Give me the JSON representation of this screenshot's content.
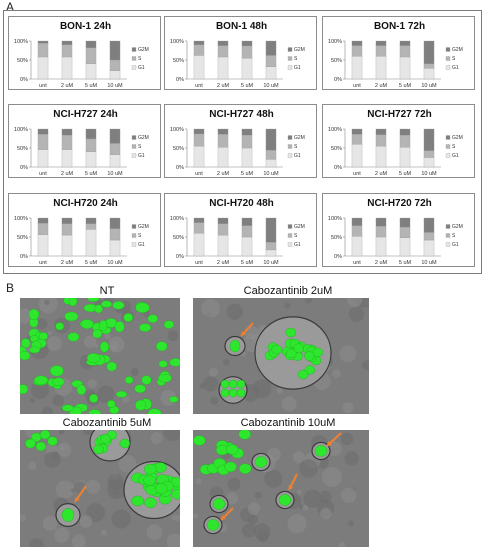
{
  "panel_a_label": "A",
  "panel_b_label": "B",
  "chart_data": [
    {
      "type": "bar",
      "title": "BON-1 24h",
      "categories": [
        "unt",
        "2 uM",
        "5 uM",
        "10 uM"
      ],
      "ylim": [
        0,
        100
      ],
      "yticks": [
        "0%",
        "50%",
        "100%"
      ],
      "series": [
        {
          "name": "G1",
          "values": [
            58,
            58,
            40,
            22
          ]
        },
        {
          "name": "S",
          "values": [
            36,
            32,
            42,
            28
          ]
        },
        {
          "name": "G2M",
          "values": [
            6,
            10,
            18,
            50
          ]
        }
      ],
      "legend": "right"
    },
    {
      "type": "bar",
      "title": "BON-1 48h",
      "categories": [
        "unt",
        "2 uM",
        "5 uM",
        "10 uM"
      ],
      "ylim": [
        0,
        100
      ],
      "yticks": [
        "0%",
        "50%",
        "100%"
      ],
      "series": [
        {
          "name": "G1",
          "values": [
            62,
            58,
            55,
            32
          ]
        },
        {
          "name": "S",
          "values": [
            28,
            30,
            32,
            30
          ]
        },
        {
          "name": "G2M",
          "values": [
            10,
            12,
            13,
            38
          ]
        }
      ],
      "legend": "right"
    },
    {
      "type": "bar",
      "title": "BON-1 72h",
      "categories": [
        "unt",
        "2 uM",
        "5 uM",
        "10 uM"
      ],
      "ylim": [
        0,
        100
      ],
      "yticks": [
        "0%",
        "50%",
        "100%"
      ],
      "series": [
        {
          "name": "G1",
          "values": [
            60,
            60,
            58,
            28
          ]
        },
        {
          "name": "S",
          "values": [
            28,
            28,
            30,
            12
          ]
        },
        {
          "name": "G2M",
          "values": [
            12,
            12,
            12,
            60
          ]
        }
      ],
      "legend": "right"
    },
    {
      "type": "bar",
      "title": "NCI-H727 24h",
      "categories": [
        "unt",
        "2 uM",
        "5 uM",
        "10 uM"
      ],
      "ylim": [
        0,
        100
      ],
      "yticks": [
        "0%",
        "50%",
        "100%"
      ],
      "series": [
        {
          "name": "G1",
          "values": [
            46,
            46,
            40,
            32
          ]
        },
        {
          "name": "S",
          "values": [
            40,
            38,
            34,
            30
          ]
        },
        {
          "name": "G2M",
          "values": [
            14,
            16,
            26,
            38
          ]
        }
      ],
      "legend": "right"
    },
    {
      "type": "bar",
      "title": "NCI-H727 48h",
      "categories": [
        "unt",
        "2 uM",
        "5 uM",
        "10 uM"
      ],
      "ylim": [
        0,
        100
      ],
      "yticks": [
        "0%",
        "50%",
        "100%"
      ],
      "series": [
        {
          "name": "G1",
          "values": [
            55,
            52,
            50,
            20
          ]
        },
        {
          "name": "S",
          "values": [
            32,
            34,
            34,
            24
          ]
        },
        {
          "name": "G2M",
          "values": [
            13,
            14,
            16,
            56
          ]
        }
      ],
      "legend": "right"
    },
    {
      "type": "bar",
      "title": "NCI-H727 72h",
      "categories": [
        "unt",
        "2 uM",
        "5 uM",
        "10 uM"
      ],
      "ylim": [
        0,
        100
      ],
      "yticks": [
        "0%",
        "50%",
        "100%"
      ],
      "series": [
        {
          "name": "G1",
          "values": [
            60,
            55,
            52,
            25
          ]
        },
        {
          "name": "S",
          "values": [
            26,
            30,
            32,
            18
          ]
        },
        {
          "name": "G2M",
          "values": [
            14,
            15,
            16,
            57
          ]
        }
      ],
      "legend": "right"
    },
    {
      "type": "bar",
      "title": "NCI-H720 24h",
      "categories": [
        "unt",
        "2 uM",
        "5 uM",
        "10 uM"
      ],
      "ylim": [
        0,
        100
      ],
      "yticks": [
        "0%",
        "50%",
        "100%"
      ],
      "series": [
        {
          "name": "G1",
          "values": [
            56,
            55,
            70,
            42
          ]
        },
        {
          "name": "S",
          "values": [
            30,
            30,
            15,
            30
          ]
        },
        {
          "name": "G2M",
          "values": [
            14,
            15,
            15,
            28
          ]
        }
      ],
      "legend": "right"
    },
    {
      "type": "bar",
      "title": "NCI-H720 48h",
      "categories": [
        "unt",
        "2 uM",
        "5 uM",
        "10 uM"
      ],
      "ylim": [
        0,
        100
      ],
      "yticks": [
        "0%",
        "50%",
        "100%"
      ],
      "series": [
        {
          "name": "G1",
          "values": [
            60,
            55,
            50,
            16
          ]
        },
        {
          "name": "S",
          "values": [
            28,
            30,
            30,
            20
          ]
        },
        {
          "name": "G2M",
          "values": [
            12,
            15,
            20,
            64
          ]
        }
      ],
      "legend": "right"
    },
    {
      "type": "bar",
      "title": "NCI-H720 72h",
      "categories": [
        "unt",
        "2 uM",
        "5 uM",
        "10 uM"
      ],
      "ylim": [
        0,
        100
      ],
      "yticks": [
        "0%",
        "50%",
        "100%"
      ],
      "series": [
        {
          "name": "G1",
          "values": [
            52,
            50,
            48,
            42
          ]
        },
        {
          "name": "S",
          "values": [
            28,
            28,
            28,
            20
          ]
        },
        {
          "name": "G2M",
          "values": [
            20,
            22,
            24,
            38
          ]
        }
      ],
      "legend": "right"
    }
  ],
  "series_colors": {
    "G1": "#e6e6e6",
    "S": "#b4b4b4",
    "G2M": "#7f7f7f"
  },
  "micrographs": [
    {
      "title": "NT"
    },
    {
      "title": "Cabozantinib 2uM"
    },
    {
      "title": "Cabozantinib 5uM"
    },
    {
      "title": "Cabozantinib 10uM"
    }
  ],
  "colors": {
    "nucleus": "#2ee62e",
    "arrow": "#f08030",
    "background": "#7a7a7a"
  }
}
